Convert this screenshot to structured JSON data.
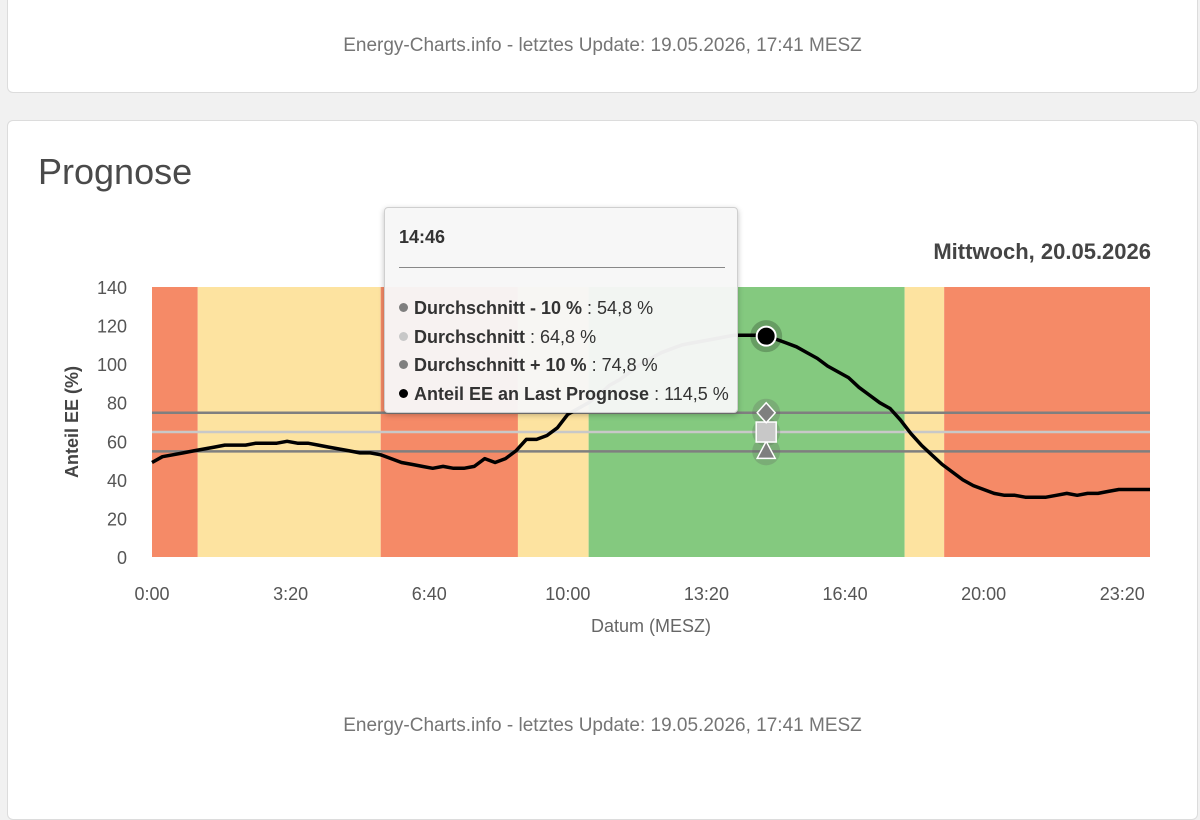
{
  "footer_text": "Energy-Charts.info - letztes Update: 19.05.2026, 17:41 MESZ",
  "section_title": "Prognose",
  "colors": {
    "red": "#f58a67",
    "yellow": "#fde3a0",
    "green": "#84c97f",
    "line": "#000000",
    "avg_minus": "#7f7f7f",
    "avg": "#c8c8c8",
    "avg_plus": "#7f7f7f"
  },
  "tooltip": {
    "time": "14:46",
    "rows": [
      {
        "name": "Durchschnitt - 10 %",
        "value": ": 54,8 %",
        "dot_color": "#7f7f7f"
      },
      {
        "name": "Durchschnitt",
        "value": ": 64,8 %",
        "dot_color": "#c8c8c8"
      },
      {
        "name": "Durchschnitt + 10 %",
        "value": ": 74,8 %",
        "dot_color": "#7f7f7f"
      },
      {
        "name": "Anteil EE an Last Prognose",
        "value": ": 114,5 %",
        "dot_color": "#000000"
      }
    ]
  },
  "chart_data": {
    "type": "line",
    "date_label": "Mittwoch, 20.05.2026",
    "xlabel": "Datum (MESZ)",
    "ylabel": "Anteil EE (%)",
    "ylim": [
      0,
      140
    ],
    "xlim_hours": [
      0,
      24
    ],
    "y_ticks": [
      "0",
      "20",
      "40",
      "60",
      "80",
      "100",
      "120",
      "140"
    ],
    "x_ticks": [
      {
        "label": "0:00",
        "hour": 0
      },
      {
        "label": "3:20",
        "hour": 3.333
      },
      {
        "label": "6:40",
        "hour": 6.667
      },
      {
        "label": "10:00",
        "hour": 10
      },
      {
        "label": "13:20",
        "hour": 13.333
      },
      {
        "label": "16:40",
        "hour": 16.667
      },
      {
        "label": "20:00",
        "hour": 20
      },
      {
        "label": "23:20",
        "hour": 23.333
      }
    ],
    "background_bands": [
      {
        "from": 0.0,
        "to": 1.1,
        "level": "red"
      },
      {
        "from": 1.1,
        "to": 5.5,
        "level": "yellow"
      },
      {
        "from": 5.5,
        "to": 8.8,
        "level": "red"
      },
      {
        "from": 8.8,
        "to": 10.5,
        "level": "yellow"
      },
      {
        "from": 10.5,
        "to": 18.1,
        "level": "green"
      },
      {
        "from": 18.1,
        "to": 19.05,
        "level": "yellow"
      },
      {
        "from": 19.05,
        "to": 24.0,
        "level": "red"
      }
    ],
    "series": [
      {
        "name": "Anteil EE an Last Prognose",
        "x": [
          0,
          0.25,
          0.5,
          0.75,
          1,
          1.25,
          1.5,
          1.75,
          2,
          2.25,
          2.5,
          2.75,
          3,
          3.25,
          3.5,
          3.75,
          4,
          4.25,
          4.5,
          4.75,
          5,
          5.25,
          5.5,
          5.75,
          6,
          6.25,
          6.5,
          6.75,
          7,
          7.25,
          7.5,
          7.75,
          8,
          8.25,
          8.5,
          8.75,
          9,
          9.25,
          9.5,
          9.75,
          10,
          10.25,
          10.5,
          10.75,
          11,
          11.25,
          11.5,
          11.75,
          12,
          12.25,
          12.5,
          12.75,
          13,
          13.25,
          13.5,
          13.75,
          14,
          14.25,
          14.5,
          14.77,
          15,
          15.25,
          15.5,
          15.75,
          16,
          16.25,
          16.5,
          16.75,
          17,
          17.25,
          17.5,
          17.75,
          18,
          18.25,
          18.5,
          18.75,
          19,
          19.25,
          19.5,
          19.75,
          20,
          20.25,
          20.5,
          20.75,
          21,
          21.25,
          21.5,
          21.75,
          22,
          22.25,
          22.5,
          22.75,
          23,
          23.25,
          23.5,
          23.75,
          24
        ],
        "values": [
          49,
          52,
          53,
          54,
          55,
          56,
          57,
          58,
          58,
          58,
          59,
          59,
          59,
          60,
          59,
          59,
          58,
          57,
          56,
          55,
          54,
          54,
          53,
          51,
          49,
          48,
          47,
          46,
          47,
          46,
          46,
          47,
          51,
          49,
          51,
          55,
          61,
          61,
          63,
          67,
          74,
          77,
          80,
          84,
          89,
          92,
          96,
          100,
          103,
          106,
          108,
          110,
          111,
          112,
          113,
          114,
          115,
          115,
          115,
          114.5,
          113,
          111,
          109,
          106,
          103,
          99,
          96,
          93,
          88,
          84,
          80,
          77,
          71,
          64,
          58,
          53,
          48,
          44,
          40,
          37,
          35,
          33,
          32,
          32,
          31,
          31,
          31,
          32,
          33,
          32,
          33,
          33,
          34,
          35,
          35,
          35,
          35
        ]
      },
      {
        "name": "Durchschnitt - 10 %",
        "constant": 54.8
      },
      {
        "name": "Durchschnitt",
        "constant": 64.8
      },
      {
        "name": "Durchschnitt + 10 %",
        "constant": 74.8
      }
    ],
    "hover_hour": 14.77
  }
}
